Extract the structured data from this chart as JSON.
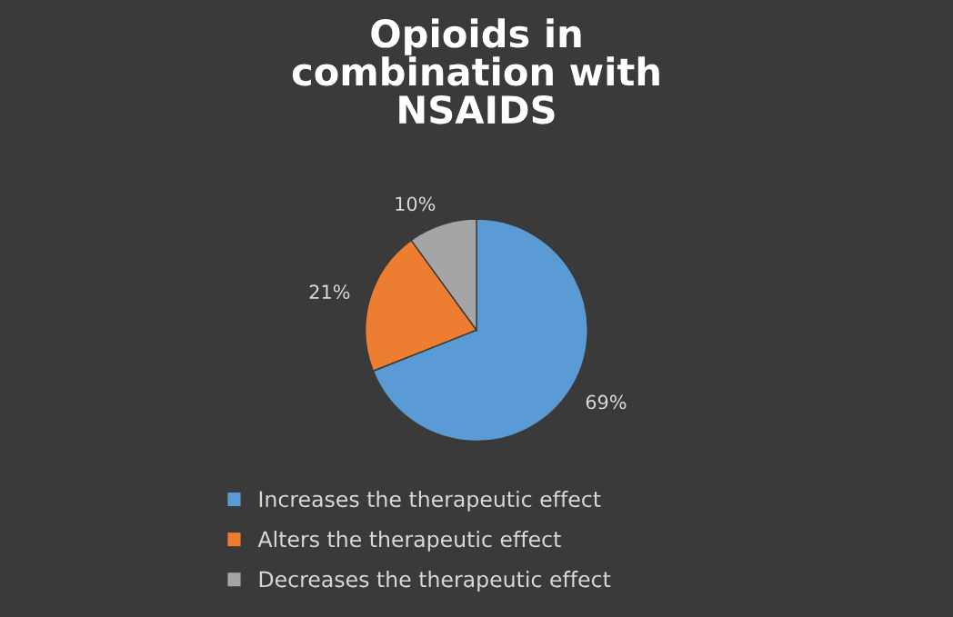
{
  "chart_data": {
    "type": "pie",
    "title": "Opioids in\ncombination with\nNSAIDS",
    "categories": [
      "Increases the therapeutic effect",
      "Alters the therapeutic effect",
      "Decreases the therapeutic effect"
    ],
    "values": [
      69,
      21,
      10
    ],
    "colors": [
      "#5b9bd5",
      "#ed7d31",
      "#a5a5a5"
    ],
    "value_labels": [
      "69%",
      "21%",
      "10%"
    ],
    "legend": "bottom"
  }
}
